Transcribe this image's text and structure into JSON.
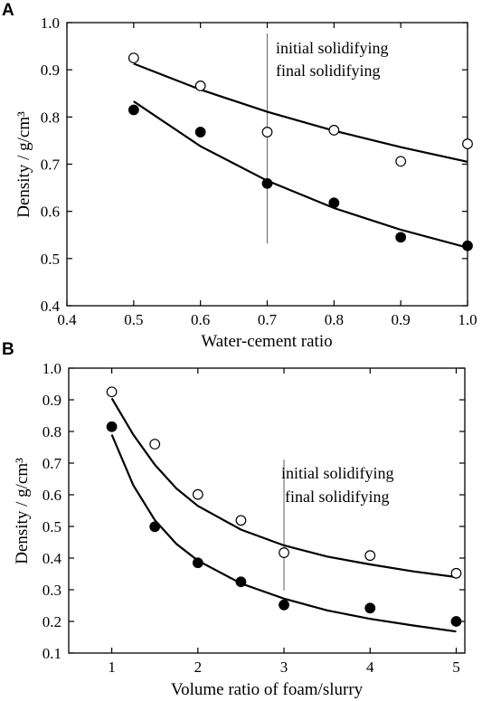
{
  "chart_data": [
    {
      "panel_label": "A",
      "type": "scatter",
      "xlabel": "Water-cement ratio",
      "ylabel": "Density / g/cm³",
      "xlim": [
        0.4,
        1.0
      ],
      "ylim": [
        0.4,
        1.0
      ],
      "xticks": [
        0.4,
        0.5,
        0.6,
        0.7,
        0.8,
        0.9,
        1.0
      ],
      "yticks": [
        0.4,
        0.5,
        0.6,
        0.7,
        0.8,
        0.9,
        1.0
      ],
      "tick_decimals": 1,
      "marker_x": 0.7,
      "legend": [
        "initial solidifying",
        "final solidifying"
      ],
      "series": [
        {
          "name": "initial solidifying",
          "marker": "open-circle",
          "x": [
            0.5,
            0.6,
            0.7,
            0.8,
            0.9,
            1.0
          ],
          "y": [
            0.925,
            0.866,
            0.768,
            0.772,
            0.706,
            0.743
          ],
          "fit": {
            "x": [
              0.5,
              0.6,
              0.7,
              0.8,
              0.9,
              1.0
            ],
            "y": [
              0.913,
              0.858,
              0.811,
              0.771,
              0.736,
              0.705
            ]
          }
        },
        {
          "name": "final solidifying",
          "marker": "filled-circle",
          "x": [
            0.5,
            0.6,
            0.7,
            0.8,
            0.9,
            1.0
          ],
          "y": [
            0.815,
            0.768,
            0.659,
            0.618,
            0.545,
            0.527
          ],
          "fit": {
            "x": [
              0.5,
              0.6,
              0.7,
              0.8,
              0.9,
              1.0
            ],
            "y": [
              0.833,
              0.738,
              0.665,
              0.607,
              0.561,
              0.523
            ]
          }
        }
      ]
    },
    {
      "panel_label": "B",
      "type": "scatter",
      "xlabel": "Volume ratio of foam/slurry",
      "ylabel": "Density / g/cm³",
      "xlim": [
        0.5,
        5.1
      ],
      "ylim": [
        0.1,
        1.0
      ],
      "xticks": [
        1,
        2,
        3,
        4,
        5
      ],
      "yticks": [
        0.1,
        0.2,
        0.3,
        0.4,
        0.5,
        0.6,
        0.7,
        0.8,
        0.9,
        1.0
      ],
      "tick_decimals_x": 0,
      "tick_decimals": 1,
      "marker_x": 3,
      "legend": [
        "initial solidifying",
        "final solidifying"
      ],
      "series": [
        {
          "name": "initial solidifying",
          "marker": "open-circle",
          "x": [
            1,
            1.5,
            2,
            2.5,
            3,
            4,
            5
          ],
          "y": [
            0.925,
            0.76,
            0.601,
            0.519,
            0.417,
            0.408,
            0.352
          ],
          "fit": {
            "x": [
              1,
              1.25,
              1.5,
              1.75,
              2,
              2.5,
              3,
              3.5,
              4,
              4.5,
              5
            ],
            "y": [
              0.905,
              0.79,
              0.695,
              0.62,
              0.565,
              0.49,
              0.44,
              0.405,
              0.38,
              0.358,
              0.34
            ]
          }
        },
        {
          "name": "final solidifying",
          "marker": "filled-circle",
          "x": [
            1,
            1.5,
            2,
            2.5,
            3,
            4,
            5
          ],
          "y": [
            0.815,
            0.499,
            0.385,
            0.325,
            0.252,
            0.242,
            0.2
          ],
          "fit": {
            "x": [
              1,
              1.25,
              1.5,
              1.75,
              2,
              2.5,
              3,
              3.5,
              4,
              4.5,
              5
            ],
            "y": [
              0.79,
              0.63,
              0.52,
              0.445,
              0.392,
              0.32,
              0.272,
              0.235,
              0.208,
              0.187,
              0.168
            ]
          }
        }
      ]
    }
  ]
}
